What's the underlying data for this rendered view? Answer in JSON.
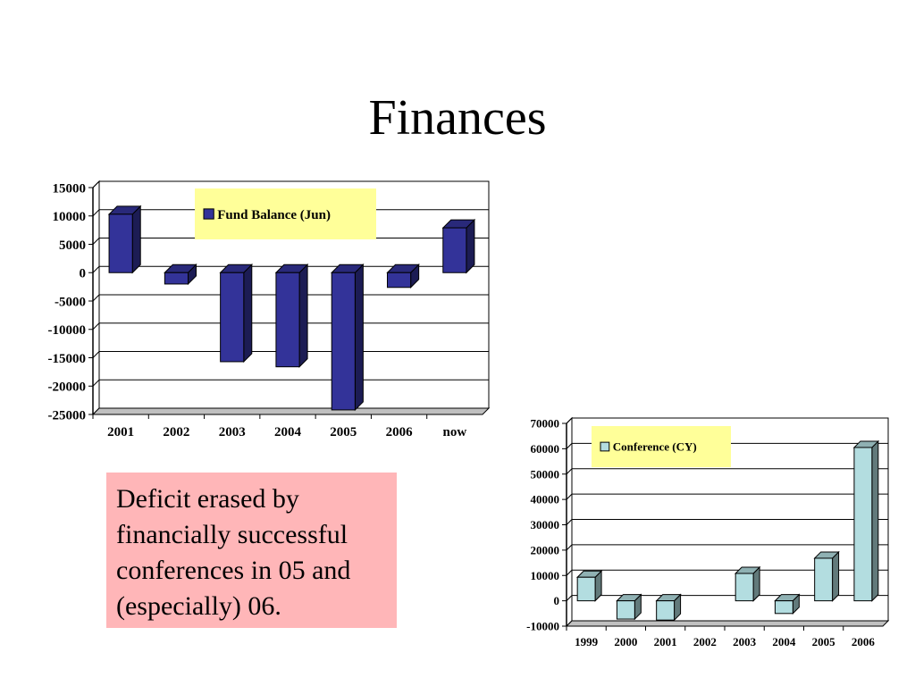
{
  "slide": {
    "title": "Finances",
    "note": "Deficit erased by financially successful conferences in 05 and (especially) 06."
  },
  "colors": {
    "fund": "#333399",
    "conference": "#b3dde0",
    "legend_bg": "#ffff99",
    "note_bg": "#ffb6b8"
  },
  "chart_data": [
    {
      "type": "bar",
      "categories": [
        "2001",
        "2002",
        "2003",
        "2004",
        "2005",
        "2006",
        "now"
      ],
      "series": [
        {
          "name": "Fund Balance (Jun)",
          "values": [
            10300,
            -2000,
            -15700,
            -16600,
            -24200,
            -2600,
            7900
          ]
        }
      ],
      "ylim": [
        -25000,
        15000
      ],
      "yticks": [
        15000,
        10000,
        5000,
        0,
        -5000,
        -10000,
        -15000,
        -20000,
        -25000
      ],
      "grid": true,
      "legend": "top-center"
    },
    {
      "type": "bar",
      "categories": [
        "1999",
        "2000",
        "2001",
        "2002",
        "2003",
        "2004",
        "2005",
        "2006"
      ],
      "series": [
        {
          "name": "Conference (CY)",
          "values": [
            9300,
            -7200,
            -7600,
            0,
            10800,
            -5000,
            16800,
            60500
          ]
        }
      ],
      "ylim": [
        -10000,
        70000
      ],
      "yticks": [
        70000,
        60000,
        50000,
        40000,
        30000,
        20000,
        10000,
        0,
        -10000
      ],
      "grid": true,
      "legend": "top-left"
    }
  ]
}
